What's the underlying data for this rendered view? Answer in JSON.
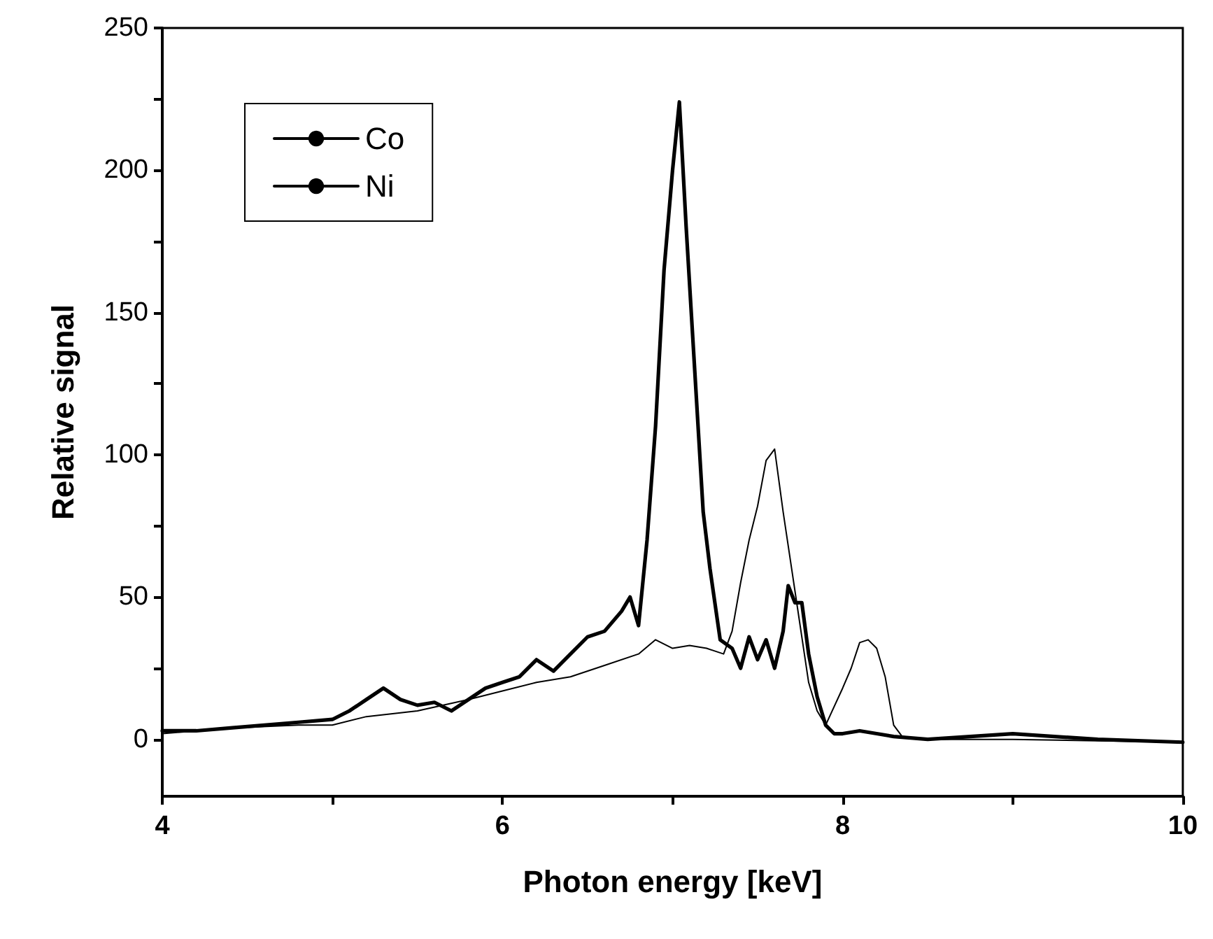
{
  "chart_data": {
    "type": "line",
    "xlabel": "Photon energy [keV]",
    "ylabel": "Relative signal",
    "xlim": [
      4,
      10
    ],
    "ylim": [
      -20,
      250
    ],
    "xticks": [
      4,
      {
        "value": 5,
        "label": null
      },
      6,
      {
        "value": 7,
        "label": null
      },
      8,
      {
        "value": 9,
        "label": null
      },
      10
    ],
    "yticks": [
      0,
      {
        "value": 25,
        "label": null
      },
      50,
      {
        "value": 75,
        "label": null
      },
      100,
      {
        "value": 125,
        "label": null
      },
      150,
      {
        "value": 175,
        "label": null
      },
      200,
      {
        "value": 225,
        "label": null
      },
      250
    ],
    "grid": false,
    "legend": "top left",
    "marker": "none",
    "series": [
      {
        "name": "Co",
        "color": "#000000",
        "x": [
          4.0,
          4.2,
          4.4,
          4.6,
          4.8,
          5.0,
          5.1,
          5.2,
          5.3,
          5.4,
          5.5,
          5.6,
          5.7,
          5.8,
          5.9,
          6.0,
          6.1,
          6.2,
          6.3,
          6.4,
          6.5,
          6.6,
          6.7,
          6.75,
          6.8,
          6.85,
          6.9,
          6.95,
          7.0,
          7.04,
          7.08,
          7.12,
          7.18,
          7.22,
          7.28,
          7.35,
          7.4,
          7.45,
          7.5,
          7.55,
          7.6,
          7.65,
          7.68,
          7.72,
          7.76,
          7.8,
          7.85,
          7.9,
          7.95,
          8.0,
          8.1,
          8.2,
          8.3,
          8.5,
          9.0,
          9.5,
          10.0
        ],
        "values": [
          3,
          3,
          4,
          5,
          6,
          7,
          10,
          14,
          18,
          14,
          12,
          13,
          10,
          14,
          18,
          20,
          22,
          28,
          24,
          30,
          36,
          38,
          45,
          50,
          40,
          70,
          110,
          165,
          200,
          224,
          180,
          140,
          80,
          60,
          35,
          32,
          25,
          36,
          28,
          35,
          25,
          38,
          54,
          48,
          48,
          30,
          15,
          5,
          2,
          2,
          3,
          2,
          1,
          0,
          2,
          0,
          -1
        ]
      },
      {
        "name": "Ni",
        "color": "#000000",
        "x": [
          4.0,
          4.4,
          4.8,
          5.0,
          5.2,
          5.5,
          5.8,
          6.0,
          6.2,
          6.4,
          6.6,
          6.8,
          6.9,
          7.0,
          7.1,
          7.2,
          7.3,
          7.35,
          7.4,
          7.45,
          7.5,
          7.55,
          7.6,
          7.65,
          7.7,
          7.75,
          7.8,
          7.85,
          7.9,
          8.0,
          8.05,
          8.1,
          8.15,
          8.2,
          8.25,
          8.3,
          8.35,
          8.5,
          9.0,
          10.0
        ],
        "values": [
          2,
          4,
          5,
          5,
          8,
          10,
          14,
          17,
          20,
          22,
          26,
          30,
          35,
          32,
          33,
          32,
          30,
          38,
          55,
          70,
          82,
          98,
          102,
          80,
          60,
          40,
          20,
          10,
          5,
          18,
          25,
          34,
          35,
          32,
          22,
          5,
          1,
          0,
          0,
          -1
        ]
      }
    ]
  }
}
